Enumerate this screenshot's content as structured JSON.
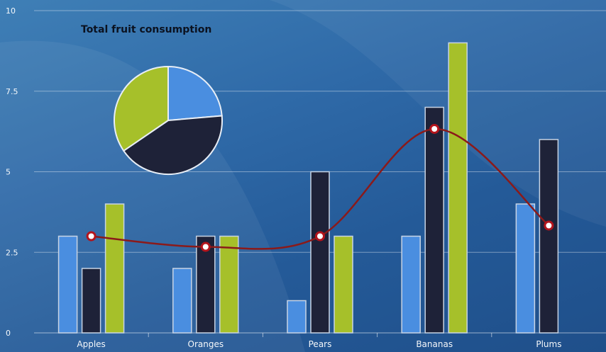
{
  "chart_data": [
    {
      "type": "bar",
      "categories": [
        "Apples",
        "Oranges",
        "Pears",
        "Bananas",
        "Plums"
      ],
      "ylim": [
        0,
        10
      ],
      "yticks": [
        0,
        2.5,
        5,
        7.5,
        10
      ],
      "ytick_labels": [
        "0",
        "2.5",
        "5",
        "7.5",
        "10"
      ],
      "grid": true,
      "series": [
        {
          "type": "bar",
          "values": [
            3,
            2,
            1,
            3,
            4
          ],
          "color": "#4a8ee0"
        },
        {
          "type": "bar",
          "values": [
            2,
            3,
            5,
            7,
            6
          ],
          "color": "#1e2238"
        },
        {
          "type": "bar",
          "values": [
            4,
            3,
            3,
            9,
            0
          ],
          "color": "#a6c02a"
        },
        {
          "type": "line",
          "values": [
            3,
            2.67,
            3,
            6.33,
            3.33
          ],
          "color": "#8b1a1a",
          "smooth": true
        }
      ]
    },
    {
      "type": "pie",
      "title": "Total fruit consumption",
      "slices": [
        {
          "value": 13,
          "color": "#4a8ee0"
        },
        {
          "value": 23,
          "color": "#1e2238"
        },
        {
          "value": 19,
          "color": "#a6c02a"
        }
      ]
    }
  ]
}
